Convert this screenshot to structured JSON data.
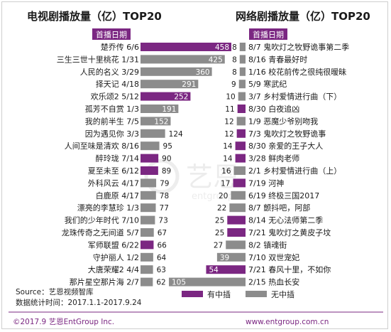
{
  "chart_data": [
    {
      "type": "bar",
      "title": "电视剧播放量（亿）TOP20",
      "header_label": "首播日期",
      "rows": [
        {
          "name": "楚乔传",
          "date": "6/6",
          "value": 458,
          "exclusive": true
        },
        {
          "name": "三生三世十里桃花",
          "date": "1/31",
          "value": 425,
          "exclusive": false
        },
        {
          "name": "人民的名义",
          "date": "3/29",
          "value": 360,
          "exclusive": false
        },
        {
          "name": "择天记",
          "date": "4/18",
          "value": 291,
          "exclusive": false
        },
        {
          "name": "欢乐颂2",
          "date": "5/12",
          "value": 252,
          "exclusive": true
        },
        {
          "name": "孤芳不自赏",
          "date": "1/3",
          "value": 191,
          "exclusive": false
        },
        {
          "name": "我的前半生",
          "date": "7/5",
          "value": 152,
          "exclusive": false
        },
        {
          "name": "因为遇见你",
          "date": "3/3",
          "value": 124,
          "exclusive": false
        },
        {
          "name": "人间至味是清欢",
          "date": "8/16",
          "value": 95,
          "exclusive": false
        },
        {
          "name": "醉玲珑",
          "date": "7/14",
          "value": 90,
          "exclusive": true
        },
        {
          "name": "夏至未至",
          "date": "6/12",
          "value": 89,
          "exclusive": true
        },
        {
          "name": "外科风云",
          "date": "4/17",
          "value": 79,
          "exclusive": false
        },
        {
          "name": "白鹿原",
          "date": "4/17",
          "value": 78,
          "exclusive": false
        },
        {
          "name": "漂亮的李慧珍",
          "date": "1/3",
          "value": 77,
          "exclusive": false
        },
        {
          "name": "我们的少年时代",
          "date": "7/10",
          "value": 73,
          "exclusive": false
        },
        {
          "name": "龙珠传奇之无间道",
          "date": "5/7",
          "value": 67,
          "exclusive": false
        },
        {
          "name": "军师联盟",
          "date": "6/22",
          "value": 66,
          "exclusive": true
        },
        {
          "name": "守护丽人",
          "date": "1/2",
          "value": 64,
          "exclusive": false
        },
        {
          "name": "大唐荣耀2",
          "date": "4/4",
          "value": 63,
          "exclusive": false
        },
        {
          "name": "那片星空那片海",
          "date": "2/7",
          "value": 62,
          "exclusive": false
        }
      ]
    },
    {
      "type": "bar",
      "title": "网络剧播放量（亿）TOP20",
      "header_label": "首播日期",
      "rows": [
        {
          "name": "鬼吹灯之牧野诡事第二季",
          "date": "8/7",
          "value": 8,
          "exclusive": false
        },
        {
          "name": "青春最好时",
          "date": "8/16",
          "value": 8,
          "exclusive": false
        },
        {
          "name": "校花前传之很纯很暧昧",
          "date": "1/16",
          "value": 8,
          "exclusive": false
        },
        {
          "name": "寒武纪",
          "date": "5/9",
          "value": 9,
          "exclusive": false
        },
        {
          "name": "乡村爱情进行曲（下）",
          "date": "3/7",
          "value": 10,
          "exclusive": false
        },
        {
          "name": "白夜追凶",
          "date": "8/30",
          "value": 11,
          "exclusive": true
        },
        {
          "name": "恶魔少爷别吻我",
          "date": "1/9",
          "value": 12,
          "exclusive": false
        },
        {
          "name": "鬼吹灯之牧野诡事",
          "date": "7/3",
          "value": 12,
          "exclusive": true
        },
        {
          "name": "亲爱的王子大人",
          "date": "8/30",
          "value": 14,
          "exclusive": true
        },
        {
          "name": "鲜肉老师",
          "date": "3/28",
          "value": 14,
          "exclusive": true
        },
        {
          "name": "乡村爱情进行曲（上）",
          "date": "2/1",
          "value": 16,
          "exclusive": false
        },
        {
          "name": "河神",
          "date": "7/19",
          "value": 17,
          "exclusive": true
        },
        {
          "name": "终极三国2017",
          "date": "6/19",
          "value": 20,
          "exclusive": false
        },
        {
          "name": "颤抖吧，阿部",
          "date": "8/7",
          "value": 22,
          "exclusive": false
        },
        {
          "name": "无心法师第二季",
          "date": "8/14",
          "value": 25,
          "exclusive": true
        },
        {
          "name": "鬼吹灯之黄皮子坟",
          "date": "7/21",
          "value": 25,
          "exclusive": true
        },
        {
          "name": "镇魂街",
          "date": "8/2",
          "value": 27,
          "exclusive": false
        },
        {
          "name": "双世宠妃",
          "date": "7/10",
          "value": 39,
          "exclusive": false
        },
        {
          "name": "春风十里，不如你",
          "date": "7/21",
          "value": 54,
          "exclusive": true
        },
        {
          "name": "热血长安",
          "date": "2/15",
          "value": 105,
          "exclusive": false
        }
      ]
    }
  ],
  "legend": {
    "exclusive_label": "有中插",
    "non_exclusive_label": "无中插",
    "exclusive_color": "#7b2782",
    "non_exclusive_color": "#8c8c8c"
  },
  "footer": {
    "source": "Source：艺恩视频智库",
    "period": "数据统计时间：2017.1.1-2017.9.24",
    "copyright": "©2017.9 艺恩EntGroup Inc.",
    "website": "www.entgroup.com.cn"
  },
  "watermark": {
    "cn": "艺恩",
    "en": "entgroup"
  }
}
